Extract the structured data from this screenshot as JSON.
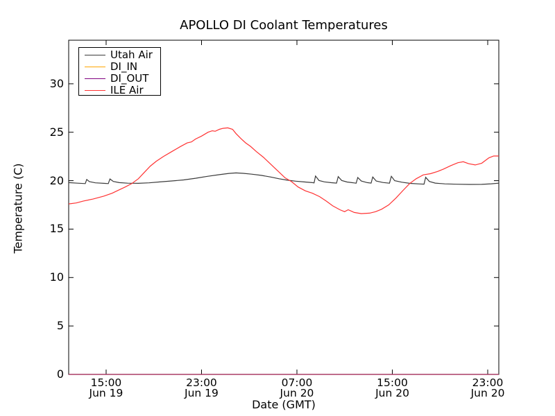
{
  "figure": {
    "background": "#ffffff",
    "frame_color": "#000000"
  },
  "chart_data": {
    "type": "line",
    "title": "APOLLO DI Coolant Temperatures",
    "xlabel": "Date (GMT)",
    "ylabel": "Temperature (C)",
    "x_unit_note": "hours since Jun 19 00:00 GMT",
    "xlim": [
      11.86,
      47.93
    ],
    "ylim": [
      0,
      34.5
    ],
    "grid": false,
    "legend_position": "upper left",
    "yticks": [
      0,
      5,
      10,
      15,
      20,
      25,
      30
    ],
    "xticks": [
      {
        "hour": 15,
        "time": "15:00",
        "date": "Jun 19"
      },
      {
        "hour": 23,
        "time": "23:00",
        "date": "Jun 19"
      },
      {
        "hour": 31,
        "time": "07:00",
        "date": "Jun 20"
      },
      {
        "hour": 39,
        "time": "15:00",
        "date": "Jun 20"
      },
      {
        "hour": 47,
        "time": "23:00",
        "date": "Jun 20"
      }
    ],
    "series": [
      {
        "name": "Utah Air",
        "color": "#3a3a3a",
        "points": [
          [
            11.86,
            19.8
          ],
          [
            12.6,
            19.74
          ],
          [
            13.25,
            19.7
          ],
          [
            13.37,
            20.12
          ],
          [
            13.6,
            19.9
          ],
          [
            14.1,
            19.78
          ],
          [
            14.9,
            19.72
          ],
          [
            15.18,
            19.7
          ],
          [
            15.32,
            20.18
          ],
          [
            15.6,
            19.92
          ],
          [
            16.1,
            19.8
          ],
          [
            16.8,
            19.74
          ],
          [
            17.7,
            19.73
          ],
          [
            18.6,
            19.78
          ],
          [
            19.5,
            19.87
          ],
          [
            20.5,
            19.97
          ],
          [
            21.5,
            20.08
          ],
          [
            22.5,
            20.25
          ],
          [
            23.5,
            20.45
          ],
          [
            24.5,
            20.62
          ],
          [
            25.3,
            20.75
          ],
          [
            25.9,
            20.8
          ],
          [
            26.5,
            20.76
          ],
          [
            27.2,
            20.67
          ],
          [
            28.0,
            20.55
          ],
          [
            28.8,
            20.38
          ],
          [
            29.5,
            20.2
          ],
          [
            30.2,
            20.05
          ],
          [
            30.9,
            19.95
          ],
          [
            31.6,
            19.87
          ],
          [
            32.3,
            19.8
          ],
          [
            32.44,
            19.77
          ],
          [
            32.56,
            20.48
          ],
          [
            32.85,
            20.02
          ],
          [
            33.3,
            19.88
          ],
          [
            33.9,
            19.79
          ],
          [
            34.32,
            19.75
          ],
          [
            34.46,
            20.42
          ],
          [
            34.75,
            20.02
          ],
          [
            35.2,
            19.86
          ],
          [
            35.75,
            19.78
          ],
          [
            35.97,
            19.74
          ],
          [
            36.1,
            20.33
          ],
          [
            36.4,
            19.96
          ],
          [
            36.9,
            19.8
          ],
          [
            37.22,
            19.75
          ],
          [
            37.36,
            20.38
          ],
          [
            37.65,
            19.96
          ],
          [
            38.2,
            19.81
          ],
          [
            38.76,
            19.74
          ],
          [
            38.92,
            20.45
          ],
          [
            39.2,
            20.0
          ],
          [
            39.8,
            19.84
          ],
          [
            40.5,
            19.72
          ],
          [
            41.3,
            19.66
          ],
          [
            41.66,
            19.64
          ],
          [
            41.8,
            20.35
          ],
          [
            42.1,
            19.92
          ],
          [
            42.6,
            19.75
          ],
          [
            43.4,
            19.67
          ],
          [
            44.4,
            19.63
          ],
          [
            45.5,
            19.61
          ],
          [
            46.5,
            19.62
          ],
          [
            47.3,
            19.68
          ],
          [
            47.93,
            19.74
          ]
        ]
      },
      {
        "name": "DI_IN",
        "color": "#ffa500",
        "points": [
          [
            11.86,
            0
          ],
          [
            47.93,
            0
          ]
        ]
      },
      {
        "name": "DI_OUT",
        "color": "#800080",
        "points": [
          [
            11.86,
            0
          ],
          [
            47.93,
            0
          ]
        ]
      },
      {
        "name": "ILE Air",
        "color": "#ff3232",
        "points": [
          [
            11.86,
            17.6
          ],
          [
            12.5,
            17.7
          ],
          [
            13.1,
            17.9
          ],
          [
            13.9,
            18.1
          ],
          [
            14.8,
            18.4
          ],
          [
            15.5,
            18.7
          ],
          [
            16.0,
            19.0
          ],
          [
            16.6,
            19.35
          ],
          [
            17.15,
            19.7
          ],
          [
            17.7,
            20.2
          ],
          [
            18.2,
            20.85
          ],
          [
            18.7,
            21.5
          ],
          [
            19.2,
            22.0
          ],
          [
            19.8,
            22.5
          ],
          [
            20.5,
            23.0
          ],
          [
            21.2,
            23.5
          ],
          [
            21.8,
            23.9
          ],
          [
            22.15,
            24.0
          ],
          [
            22.5,
            24.3
          ],
          [
            23.0,
            24.6
          ],
          [
            23.55,
            25.0
          ],
          [
            23.9,
            25.15
          ],
          [
            24.15,
            25.1
          ],
          [
            24.5,
            25.3
          ],
          [
            24.8,
            25.4
          ],
          [
            25.2,
            25.45
          ],
          [
            25.6,
            25.3
          ],
          [
            25.9,
            24.85
          ],
          [
            26.3,
            24.35
          ],
          [
            26.7,
            23.9
          ],
          [
            27.1,
            23.55
          ],
          [
            27.6,
            23.0
          ],
          [
            28.2,
            22.4
          ],
          [
            28.8,
            21.7
          ],
          [
            29.4,
            21.0
          ],
          [
            30.0,
            20.3
          ],
          [
            30.55,
            19.9
          ],
          [
            31.1,
            19.35
          ],
          [
            31.7,
            18.95
          ],
          [
            32.3,
            18.7
          ],
          [
            32.9,
            18.35
          ],
          [
            33.45,
            17.9
          ],
          [
            34.0,
            17.4
          ],
          [
            34.6,
            17.0
          ],
          [
            35.0,
            16.8
          ],
          [
            35.3,
            17.0
          ],
          [
            35.8,
            16.72
          ],
          [
            36.4,
            16.6
          ],
          [
            37.1,
            16.65
          ],
          [
            37.6,
            16.8
          ],
          [
            38.1,
            17.05
          ],
          [
            38.7,
            17.5
          ],
          [
            39.3,
            18.2
          ],
          [
            39.9,
            19.0
          ],
          [
            40.45,
            19.7
          ],
          [
            41.0,
            20.2
          ],
          [
            41.6,
            20.6
          ],
          [
            42.2,
            20.72
          ],
          [
            42.8,
            20.95
          ],
          [
            43.3,
            21.2
          ],
          [
            43.9,
            21.55
          ],
          [
            44.5,
            21.85
          ],
          [
            44.95,
            21.95
          ],
          [
            45.4,
            21.75
          ],
          [
            45.95,
            21.62
          ],
          [
            46.5,
            21.8
          ],
          [
            47.1,
            22.35
          ],
          [
            47.5,
            22.55
          ],
          [
            47.93,
            22.55
          ]
        ]
      }
    ]
  }
}
